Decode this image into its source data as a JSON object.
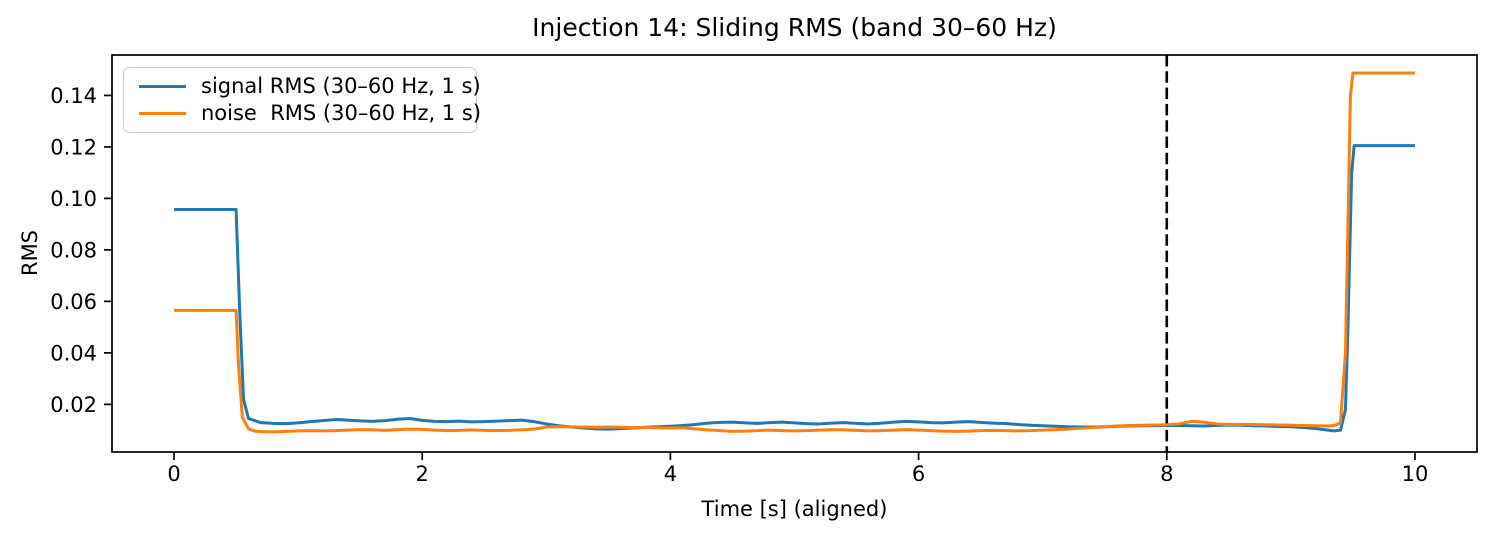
{
  "figure": {
    "title": "Injection 14: Sliding RMS (band 30–60 Hz)",
    "xlabel": "Time [s] (aligned)",
    "ylabel": "RMS",
    "background_color": "#ffffff",
    "spine_color": "#000000"
  },
  "legend": {
    "position": "upper left",
    "entries": [
      {
        "label": "signal RMS (30–60 Hz, 1 s)",
        "color": "#1f77b4"
      },
      {
        "label": "noise  RMS (30–60 Hz, 1 s)",
        "color": "#ff7f0e"
      }
    ]
  },
  "chart_data": {
    "type": "line",
    "title": "Injection 14: Sliding RMS (band 30–60 Hz)",
    "xlabel": "Time [s] (aligned)",
    "ylabel": "RMS",
    "xlim": [
      -0.5,
      10.5
    ],
    "ylim": [
      0.0015,
      0.1557
    ],
    "grid": false,
    "legend_position": "upper left",
    "xticks": {
      "values": [
        0,
        2,
        4,
        6,
        8,
        10
      ],
      "labels": [
        "0",
        "2",
        "4",
        "6",
        "8",
        "10"
      ]
    },
    "yticks": {
      "values": [
        0.02,
        0.04,
        0.06,
        0.08,
        0.1,
        0.12,
        0.14
      ],
      "labels": [
        "0.02",
        "0.04",
        "0.06",
        "0.08",
        "0.10",
        "0.12",
        "0.14"
      ]
    },
    "vline": {
      "x": 8,
      "style": "dashed",
      "color": "#000000"
    },
    "series": [
      {
        "name": "signal RMS (30–60 Hz, 1 s)",
        "color": "#1f77b4",
        "points": [
          [
            0.0,
            0.0957
          ],
          [
            0.5,
            0.0957
          ],
          [
            0.53,
            0.055
          ],
          [
            0.56,
            0.022
          ],
          [
            0.6,
            0.0145
          ],
          [
            0.7,
            0.0129
          ],
          [
            0.8,
            0.0126
          ],
          [
            0.9,
            0.0125
          ],
          [
            1.0,
            0.0128
          ],
          [
            1.1,
            0.0133
          ],
          [
            1.2,
            0.0137
          ],
          [
            1.3,
            0.0141
          ],
          [
            1.4,
            0.0139
          ],
          [
            1.5,
            0.0136
          ],
          [
            1.6,
            0.0134
          ],
          [
            1.7,
            0.0137
          ],
          [
            1.8,
            0.0142
          ],
          [
            1.9,
            0.0145
          ],
          [
            2.0,
            0.0138
          ],
          [
            2.1,
            0.0134
          ],
          [
            2.2,
            0.0133
          ],
          [
            2.3,
            0.0135
          ],
          [
            2.4,
            0.0132
          ],
          [
            2.5,
            0.0133
          ],
          [
            2.6,
            0.0135
          ],
          [
            2.7,
            0.0137
          ],
          [
            2.8,
            0.0139
          ],
          [
            2.9,
            0.0133
          ],
          [
            3.0,
            0.0124
          ],
          [
            3.1,
            0.0117
          ],
          [
            3.2,
            0.0112
          ],
          [
            3.3,
            0.0108
          ],
          [
            3.4,
            0.0105
          ],
          [
            3.5,
            0.0104
          ],
          [
            3.6,
            0.0106
          ],
          [
            3.7,
            0.0108
          ],
          [
            3.8,
            0.0111
          ],
          [
            3.9,
            0.0113
          ],
          [
            4.0,
            0.0115
          ],
          [
            4.1,
            0.0118
          ],
          [
            4.2,
            0.0122
          ],
          [
            4.3,
            0.0127
          ],
          [
            4.4,
            0.013
          ],
          [
            4.5,
            0.0131
          ],
          [
            4.6,
            0.0128
          ],
          [
            4.7,
            0.0126
          ],
          [
            4.8,
            0.0129
          ],
          [
            4.9,
            0.0131
          ],
          [
            5.0,
            0.0128
          ],
          [
            5.1,
            0.0125
          ],
          [
            5.2,
            0.0124
          ],
          [
            5.3,
            0.0127
          ],
          [
            5.4,
            0.0129
          ],
          [
            5.5,
            0.0126
          ],
          [
            5.6,
            0.0124
          ],
          [
            5.7,
            0.0127
          ],
          [
            5.8,
            0.0131
          ],
          [
            5.9,
            0.0134
          ],
          [
            6.0,
            0.0132
          ],
          [
            6.1,
            0.0129
          ],
          [
            6.2,
            0.0128
          ],
          [
            6.3,
            0.0131
          ],
          [
            6.4,
            0.0133
          ],
          [
            6.5,
            0.013
          ],
          [
            6.6,
            0.0127
          ],
          [
            6.7,
            0.0125
          ],
          [
            6.8,
            0.0122
          ],
          [
            6.9,
            0.0119
          ],
          [
            7.0,
            0.0117
          ],
          [
            7.1,
            0.0115
          ],
          [
            7.2,
            0.0113
          ],
          [
            7.3,
            0.0112
          ],
          [
            7.4,
            0.0112
          ],
          [
            7.5,
            0.0113
          ],
          [
            7.6,
            0.0115
          ],
          [
            7.7,
            0.0116
          ],
          [
            7.8,
            0.0117
          ],
          [
            7.9,
            0.0117
          ],
          [
            8.0,
            0.0118
          ],
          [
            8.1,
            0.0118
          ],
          [
            8.2,
            0.0117
          ],
          [
            8.3,
            0.0116
          ],
          [
            8.4,
            0.0118
          ],
          [
            8.5,
            0.012
          ],
          [
            8.6,
            0.0119
          ],
          [
            8.7,
            0.0117
          ],
          [
            8.8,
            0.0116
          ],
          [
            8.9,
            0.0114
          ],
          [
            9.0,
            0.0113
          ],
          [
            9.1,
            0.011
          ],
          [
            9.2,
            0.0106
          ],
          [
            9.3,
            0.01
          ],
          [
            9.35,
            0.0097
          ],
          [
            9.4,
            0.01
          ],
          [
            9.44,
            0.018
          ],
          [
            9.46,
            0.05
          ],
          [
            9.49,
            0.11
          ],
          [
            9.51,
            0.1205
          ],
          [
            10.0,
            0.1205
          ]
        ]
      },
      {
        "name": "noise  RMS (30–60 Hz, 1 s)",
        "color": "#ff7f0e",
        "points": [
          [
            0.0,
            0.0565
          ],
          [
            0.5,
            0.0565
          ],
          [
            0.52,
            0.035
          ],
          [
            0.55,
            0.015
          ],
          [
            0.6,
            0.0105
          ],
          [
            0.65,
            0.0096
          ],
          [
            0.7,
            0.0094
          ],
          [
            0.8,
            0.0093
          ],
          [
            0.9,
            0.0095
          ],
          [
            1.0,
            0.0097
          ],
          [
            1.1,
            0.0098
          ],
          [
            1.2,
            0.0097
          ],
          [
            1.3,
            0.0098
          ],
          [
            1.4,
            0.01
          ],
          [
            1.5,
            0.0102
          ],
          [
            1.6,
            0.0101
          ],
          [
            1.7,
            0.0099
          ],
          [
            1.8,
            0.0102
          ],
          [
            1.9,
            0.0104
          ],
          [
            2.0,
            0.0103
          ],
          [
            2.1,
            0.01
          ],
          [
            2.2,
            0.0098
          ],
          [
            2.3,
            0.0099
          ],
          [
            2.4,
            0.0101
          ],
          [
            2.5,
            0.0099
          ],
          [
            2.6,
            0.0098
          ],
          [
            2.7,
            0.0099
          ],
          [
            2.8,
            0.0101
          ],
          [
            2.9,
            0.0104
          ],
          [
            3.0,
            0.0112
          ],
          [
            3.1,
            0.0113
          ],
          [
            3.2,
            0.0112
          ],
          [
            3.3,
            0.0112
          ],
          [
            3.4,
            0.0111
          ],
          [
            3.5,
            0.0112
          ],
          [
            3.6,
            0.0111
          ],
          [
            3.7,
            0.011
          ],
          [
            3.8,
            0.011
          ],
          [
            3.9,
            0.0109
          ],
          [
            4.0,
            0.0108
          ],
          [
            4.1,
            0.0109
          ],
          [
            4.2,
            0.0105
          ],
          [
            4.3,
            0.0101
          ],
          [
            4.4,
            0.0098
          ],
          [
            4.5,
            0.0095
          ],
          [
            4.6,
            0.0096
          ],
          [
            4.7,
            0.0098
          ],
          [
            4.8,
            0.01
          ],
          [
            4.9,
            0.0098
          ],
          [
            5.0,
            0.0097
          ],
          [
            5.1,
            0.0098
          ],
          [
            5.2,
            0.01
          ],
          [
            5.3,
            0.0102
          ],
          [
            5.4,
            0.0101
          ],
          [
            5.5,
            0.0099
          ],
          [
            5.6,
            0.0097
          ],
          [
            5.7,
            0.0098
          ],
          [
            5.8,
            0.01
          ],
          [
            5.9,
            0.0102
          ],
          [
            6.0,
            0.01
          ],
          [
            6.1,
            0.0098
          ],
          [
            6.2,
            0.0096
          ],
          [
            6.3,
            0.0095
          ],
          [
            6.4,
            0.0096
          ],
          [
            6.5,
            0.0098
          ],
          [
            6.6,
            0.0099
          ],
          [
            6.7,
            0.0098
          ],
          [
            6.8,
            0.0097
          ],
          [
            6.9,
            0.0098
          ],
          [
            7.0,
            0.01
          ],
          [
            7.1,
            0.0102
          ],
          [
            7.2,
            0.0104
          ],
          [
            7.3,
            0.0107
          ],
          [
            7.4,
            0.011
          ],
          [
            7.5,
            0.0113
          ],
          [
            7.6,
            0.0116
          ],
          [
            7.7,
            0.0118
          ],
          [
            7.8,
            0.0119
          ],
          [
            7.9,
            0.012
          ],
          [
            8.0,
            0.0121
          ],
          [
            8.1,
            0.0124
          ],
          [
            8.2,
            0.0134
          ],
          [
            8.3,
            0.0131
          ],
          [
            8.4,
            0.0124
          ],
          [
            8.5,
            0.0122
          ],
          [
            8.6,
            0.0123
          ],
          [
            8.7,
            0.0122
          ],
          [
            8.8,
            0.0121
          ],
          [
            8.9,
            0.012
          ],
          [
            9.0,
            0.0119
          ],
          [
            9.1,
            0.0118
          ],
          [
            9.2,
            0.0117
          ],
          [
            9.3,
            0.0116
          ],
          [
            9.35,
            0.0118
          ],
          [
            9.4,
            0.0128
          ],
          [
            9.44,
            0.04
          ],
          [
            9.46,
            0.09
          ],
          [
            9.48,
            0.14
          ],
          [
            9.5,
            0.1487
          ],
          [
            10.0,
            0.1487
          ]
        ]
      }
    ]
  }
}
